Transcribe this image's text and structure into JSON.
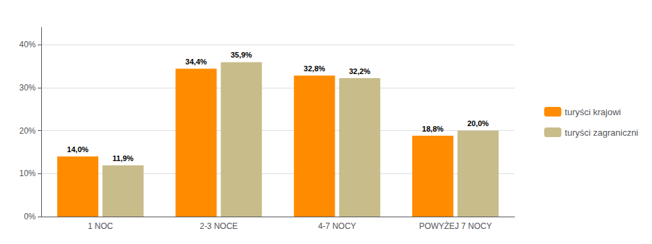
{
  "chart_data": {
    "type": "bar",
    "categories": [
      "1 NOC",
      "2-3 NOCE",
      "4-7 NOCY",
      "POWYŻEJ 7 NOCY"
    ],
    "series": [
      {
        "name": "turyści krajowi",
        "color": "#FF8C00",
        "values": [
          14.0,
          34.4,
          32.8,
          18.8
        ],
        "value_labels": [
          "14,0%",
          "34,4%",
          "32,8%",
          "18,8%"
        ]
      },
      {
        "name": "turyści zagraniczni",
        "color": "#C8BC8A",
        "values": [
          11.9,
          35.9,
          32.2,
          20.0
        ],
        "value_labels": [
          "11,9%",
          "35,9%",
          "32,2%",
          "20,0%"
        ]
      }
    ],
    "ylim": [
      0,
      44
    ],
    "yticks": [
      {
        "value": 0,
        "label": "0%"
      },
      {
        "value": 10,
        "label": "10%"
      },
      {
        "value": 20,
        "label": "20%"
      },
      {
        "value": 30,
        "label": "30%"
      },
      {
        "value": 40,
        "label": "40%"
      }
    ],
    "grid": true,
    "legend": "right",
    "data_labels": true
  }
}
